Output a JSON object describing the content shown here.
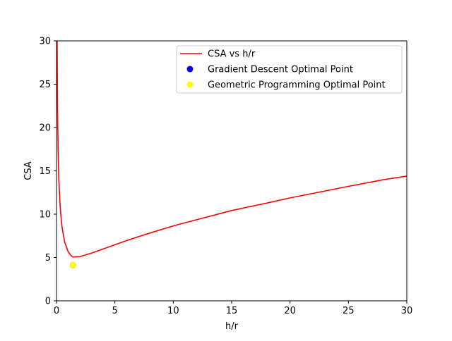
{
  "chart_data": {
    "type": "line",
    "xlabel": "h/r",
    "ylabel": "CSA",
    "xlim": [
      0,
      30
    ],
    "ylim": [
      0,
      30
    ],
    "x_ticks": [
      "0",
      "5",
      "10",
      "15",
      "20",
      "25",
      "30"
    ],
    "y_ticks": [
      "0",
      "5",
      "10",
      "15",
      "20",
      "25",
      "30"
    ],
    "grid": false,
    "legend_position": "top-right",
    "series": [
      {
        "name": "CSA vs h/r",
        "type": "line",
        "color": "#ff0000",
        "x": [
          0.05,
          0.08,
          0.1,
          0.15,
          0.2,
          0.3,
          0.4,
          0.5,
          0.7,
          1.0,
          1.25,
          1.414,
          1.6,
          2.0,
          3.0,
          4.0,
          5.0,
          6.0,
          7.0,
          8.0,
          10.0,
          12.0,
          15.0,
          18.0,
          20.0,
          22.0,
          25.0,
          28.0,
          30.0
        ],
        "y": [
          30.65,
          23.57,
          20.66,
          16.66,
          14.1,
          11.21,
          9.43,
          8.29,
          6.78,
          5.67,
          5.21,
          5.06,
          5.08,
          5.1,
          5.51,
          5.99,
          6.47,
          6.95,
          7.4,
          7.82,
          8.65,
          9.36,
          10.42,
          11.28,
          11.88,
          12.41,
          13.21,
          13.98,
          14.4
        ]
      },
      {
        "name": "Gradient Descent Optimal Point",
        "type": "scatter",
        "color": "#0000ff",
        "x": [
          1.41
        ],
        "y": [
          4.12
        ]
      },
      {
        "name": "Geometric Programming Optimal Point",
        "type": "scatter",
        "color": "#ffff00",
        "x": [
          1.41
        ],
        "y": [
          4.12
        ]
      }
    ]
  }
}
